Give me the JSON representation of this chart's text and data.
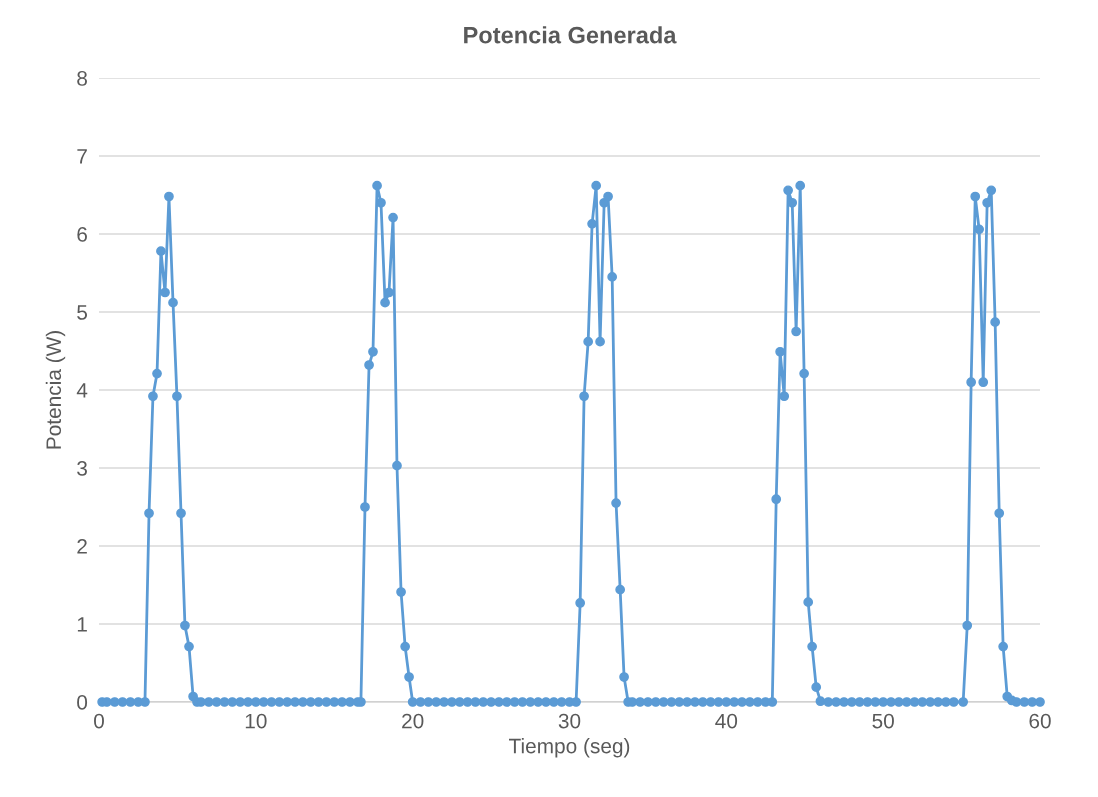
{
  "chart_data": {
    "type": "line",
    "title": "Potencia Generada",
    "xlabel": "Tiempo (seg)",
    "ylabel": "Potencia (W)",
    "xlim": [
      0,
      60
    ],
    "xticks": [
      0,
      10,
      20,
      30,
      40,
      50,
      60
    ],
    "ylim": [
      0,
      8
    ],
    "yticks": [
      0,
      1,
      2,
      3,
      4,
      5,
      6,
      7,
      8
    ],
    "grid": "y",
    "marker": "circle",
    "line_style": "solid",
    "legend": false,
    "series": [
      {
        "color": "#5b9bd5",
        "x": [
          0.2,
          0.5,
          1.0,
          1.5,
          2.0,
          2.5,
          2.93,
          3.19,
          3.44,
          3.7,
          3.95,
          4.21,
          4.46,
          4.72,
          4.97,
          5.23,
          5.48,
          5.74,
          6.0,
          6.25,
          6.5,
          7,
          7.5,
          8,
          8.5,
          9,
          9.5,
          10,
          10.5,
          11,
          11.5,
          12,
          12.5,
          13,
          13.5,
          14,
          14.5,
          15,
          15.5,
          16,
          16.5,
          16.7,
          16.96,
          17.22,
          17.47,
          17.73,
          17.98,
          18.24,
          18.49,
          18.75,
          19.0,
          19.26,
          19.52,
          19.77,
          20.0,
          20.5,
          21,
          21.5,
          22,
          22.5,
          23,
          23.5,
          24,
          24.5,
          25,
          25.5,
          26,
          26.5,
          27,
          27.5,
          28,
          28.5,
          29,
          29.5,
          30,
          30.42,
          30.68,
          30.93,
          31.19,
          31.44,
          31.7,
          31.95,
          32.21,
          32.46,
          32.72,
          32.97,
          33.23,
          33.48,
          33.74,
          34,
          34.5,
          35,
          35.5,
          36,
          36.5,
          37,
          37.5,
          38,
          38.5,
          39,
          39.5,
          40,
          40.5,
          41,
          41.5,
          42,
          42.5,
          42.93,
          43.18,
          43.43,
          43.69,
          43.94,
          44.2,
          44.45,
          44.71,
          44.96,
          45.22,
          45.47,
          45.73,
          46.0,
          46.5,
          47,
          47.5,
          48,
          48.5,
          49,
          49.5,
          50,
          50.5,
          51,
          51.5,
          52,
          52.5,
          53,
          53.5,
          54,
          54.5,
          55.1,
          55.36,
          55.61,
          55.87,
          56.12,
          56.38,
          56.63,
          56.89,
          57.14,
          57.4,
          57.65,
          57.91,
          58.2,
          58.5,
          59,
          59.5,
          60
        ],
        "values": [
          0,
          0,
          0,
          0,
          0,
          0,
          0,
          2.42,
          3.92,
          4.21,
          5.78,
          5.25,
          6.48,
          5.12,
          3.92,
          2.42,
          0.98,
          0.71,
          0.07,
          0,
          0,
          0,
          0,
          0,
          0,
          0,
          0,
          0,
          0,
          0,
          0,
          0,
          0,
          0,
          0,
          0,
          0,
          0,
          0,
          0,
          0,
          0,
          2.5,
          4.32,
          4.49,
          6.62,
          6.4,
          5.12,
          5.25,
          6.21,
          3.03,
          1.41,
          0.71,
          0.32,
          0,
          0,
          0,
          0,
          0,
          0,
          0,
          0,
          0,
          0,
          0,
          0,
          0,
          0,
          0,
          0,
          0,
          0,
          0,
          0,
          0,
          0,
          1.27,
          3.92,
          4.62,
          6.13,
          6.62,
          4.62,
          6.4,
          6.48,
          5.45,
          2.55,
          1.44,
          0.32,
          0,
          0,
          0,
          0,
          0,
          0,
          0,
          0,
          0,
          0,
          0,
          0,
          0,
          0,
          0,
          0,
          0,
          0,
          0,
          0,
          2.6,
          4.49,
          3.92,
          6.56,
          6.4,
          4.75,
          6.62,
          4.21,
          1.28,
          0.71,
          0.19,
          0.01,
          0,
          0,
          0,
          0,
          0,
          0,
          0,
          0,
          0,
          0,
          0,
          0,
          0,
          0,
          0,
          0,
          0,
          0,
          0.98,
          4.1,
          6.48,
          6.06,
          4.1,
          6.4,
          6.56,
          4.87,
          2.42,
          0.71,
          0.07,
          0.02,
          0,
          0,
          0,
          0
        ]
      }
    ]
  }
}
